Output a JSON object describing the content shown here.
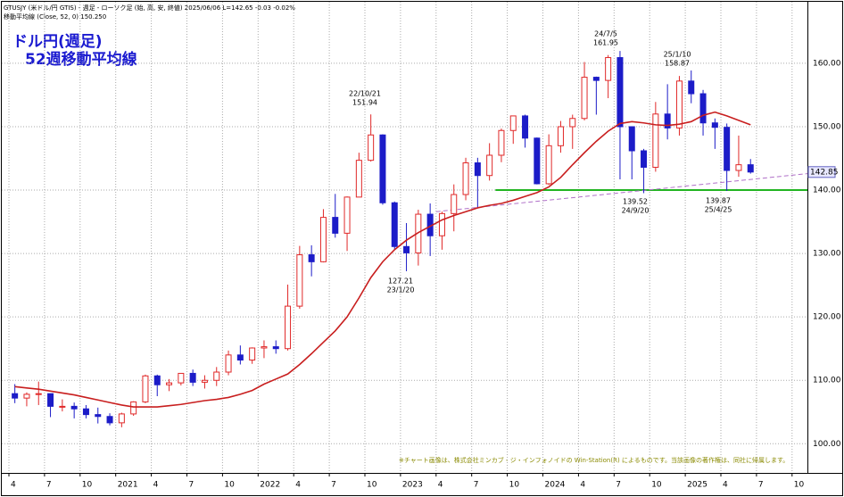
{
  "chart_data": {
    "type": "candlestick",
    "header": "GTUSJY (米ドル/円 GTIS) - 週足 - ローソク足 (始, 高, 安, 終値)  2025/06/06 L=142.65 -0.03 -0.02%",
    "indicator_label": "移動平均線 (Close, 52, 0) 150.250",
    "title": "ドル円(週足)",
    "subtitle": "52週移動平均線",
    "note": "※チャート画像は、株式会社ミンカブ・ジ・インフォノイドの Win-Station(R) によるものです。当該画像の著作権は、同社に帰属します。",
    "categories": [
      "4",
      null,
      null,
      "7",
      null,
      null,
      "10",
      null,
      null,
      "2021",
      null,
      null,
      "4",
      null,
      null,
      "7",
      null,
      null,
      "10",
      null,
      null,
      "2022",
      null,
      null,
      "4",
      null,
      null,
      "7",
      null,
      null,
      "10",
      null,
      null,
      "2023",
      null,
      null,
      "4",
      null,
      null,
      "7",
      null,
      null,
      "10",
      null,
      null,
      "2024",
      null,
      null,
      "4",
      null,
      null,
      "7",
      null,
      null,
      "10",
      null,
      null,
      "2025",
      null,
      null,
      "4",
      null,
      null,
      "7",
      null,
      null,
      "10",
      null
    ],
    "open": [
      107.9,
      107.2,
      107.8,
      107.9,
      105.9,
      105.9,
      105.5,
      104.6,
      104.3,
      103.3,
      104.7,
      106.6,
      110.7,
      109.3,
      109.6,
      111.1,
      109.7,
      110.0,
      111.3,
      114.0,
      113.2,
      115.1,
      115.3,
      115.0,
      121.7,
      129.8,
      128.7,
      135.7,
      133.2,
      138.9,
      144.7,
      148.7,
      138.0,
      131.1,
      130.1,
      136.2,
      132.8,
      136.3,
      139.3,
      144.3,
      142.3,
      145.5,
      149.4,
      151.7,
      148.2,
      141.0,
      147.0,
      150.0,
      151.3,
      157.8,
      157.3,
      160.9,
      150.0,
      146.2,
      143.6,
      152.0,
      149.8,
      157.2,
      155.2,
      150.6,
      149.9,
      143.1,
      144.0,
      null,
      null,
      null,
      null,
      null
    ],
    "high": [
      109.4,
      108.1,
      109.8,
      107.9,
      107.0,
      106.5,
      106.1,
      105.7,
      104.8,
      104.9,
      106.7,
      110.9,
      110.9,
      110.2,
      111.1,
      111.7,
      110.8,
      112.1,
      114.7,
      115.5,
      115.2,
      116.3,
      116.3,
      125.1,
      131.2,
      131.3,
      137.0,
      139.4,
      139.0,
      145.9,
      151.94,
      148.8,
      138.2,
      134.8,
      136.9,
      137.9,
      136.6,
      140.9,
      145.1,
      145.1,
      147.4,
      149.7,
      151.7,
      151.9,
      148.3,
      148.8,
      150.9,
      151.9,
      160.2,
      157.9,
      161.3,
      161.95,
      150.0,
      146.5,
      153.9,
      156.7,
      158.0,
      158.87,
      155.8,
      151.3,
      150.5,
      148.6,
      144.9,
      null,
      null,
      null,
      null,
      null
    ],
    "low": [
      106.4,
      105.9,
      106.1,
      104.2,
      105.1,
      104.0,
      104.0,
      103.2,
      102.9,
      102.6,
      104.4,
      106.4,
      107.5,
      108.3,
      109.2,
      109.1,
      108.7,
      109.1,
      110.8,
      112.5,
      112.6,
      113.5,
      114.2,
      114.7,
      121.3,
      126.4,
      128.6,
      132.5,
      130.4,
      138.9,
      144.5,
      137.7,
      130.6,
      127.21,
      128.1,
      129.6,
      130.6,
      133.5,
      138.4,
      137.2,
      141.5,
      144.4,
      147.3,
      146.7,
      140.9,
      140.8,
      145.9,
      146.5,
      151.0,
      151.9,
      154.5,
      141.7,
      141.7,
      139.52,
      142.9,
      148.0,
      148.6,
      153.7,
      148.6,
      146.5,
      139.87,
      142.1,
      142.6,
      null,
      null,
      null,
      null,
      null
    ],
    "close": [
      107.2,
      107.8,
      107.9,
      105.9,
      105.9,
      105.5,
      104.6,
      104.3,
      103.3,
      104.7,
      106.6,
      110.7,
      109.3,
      109.6,
      111.1,
      109.7,
      110.0,
      111.3,
      114.0,
      113.2,
      115.1,
      115.3,
      115.0,
      121.7,
      129.8,
      128.7,
      135.7,
      133.2,
      138.9,
      144.7,
      148.7,
      138.0,
      131.1,
      130.1,
      136.2,
      132.8,
      136.3,
      139.3,
      144.3,
      142.3,
      145.5,
      149.4,
      151.7,
      148.2,
      141.0,
      147.0,
      150.0,
      151.3,
      157.8,
      157.3,
      160.9,
      150.0,
      146.2,
      143.6,
      152.0,
      149.8,
      157.2,
      155.2,
      150.6,
      149.9,
      143.1,
      144.0,
      142.85,
      null,
      null,
      null,
      null,
      null
    ],
    "up_color": "#e02828",
    "down_color": "#1c1cc8",
    "ma": {
      "color": "#c81e1e",
      "values": [
        109.0,
        108.8,
        108.6,
        108.3,
        108.0,
        107.7,
        107.3,
        106.9,
        106.5,
        106.1,
        105.8,
        105.8,
        105.8,
        106.0,
        106.2,
        106.5,
        106.8,
        107.0,
        107.3,
        107.8,
        108.4,
        109.4,
        110.2,
        111.0,
        112.5,
        114.2,
        116.0,
        117.8,
        120.0,
        123.0,
        126.2,
        128.7,
        130.6,
        132.1,
        133.3,
        134.3,
        135.3,
        136.0,
        136.6,
        137.2,
        137.6,
        137.9,
        138.4,
        139.0,
        139.6,
        140.5,
        142.0,
        144.0,
        145.9,
        147.7,
        149.3,
        150.5,
        150.8,
        150.6,
        150.3,
        150.2,
        150.4,
        150.8,
        151.8,
        152.3,
        151.7,
        151.0,
        150.3,
        null,
        null,
        null,
        null,
        null
      ]
    },
    "support": {
      "y": 140,
      "start": 41,
      "color": "#22b422"
    },
    "trendline": {
      "y": [
        136.6,
        142.6
      ],
      "start": 36,
      "color": "#b070c8"
    },
    "last": {
      "value": 142.85,
      "label": "142.85"
    },
    "annotations": [
      {
        "top": "22/10/21",
        "bottom": "151.94"
      },
      {
        "top": "127.21",
        "bottom": "23/1/20"
      },
      {
        "top": "24/7/5",
        "bottom": "161.95"
      },
      {
        "top": "25/1/10",
        "bottom": "158.87"
      },
      {
        "top": "139.52",
        "bottom": "24/9/20"
      },
      {
        "top": "139.87",
        "bottom": "25/4/25"
      }
    ],
    "ylim": [
      95.4,
      169.7
    ],
    "yticks": [
      {
        "value": 100,
        "label": "100.00"
      },
      {
        "value": 110,
        "label": "110.00"
      },
      {
        "value": 120,
        "label": "120.00"
      },
      {
        "value": 130,
        "label": "130.00"
      },
      {
        "value": 140,
        "label": "140.00"
      },
      {
        "value": 150,
        "label": "150.00"
      },
      {
        "value": 160,
        "label": "160.00"
      }
    ],
    "grid": true
  }
}
